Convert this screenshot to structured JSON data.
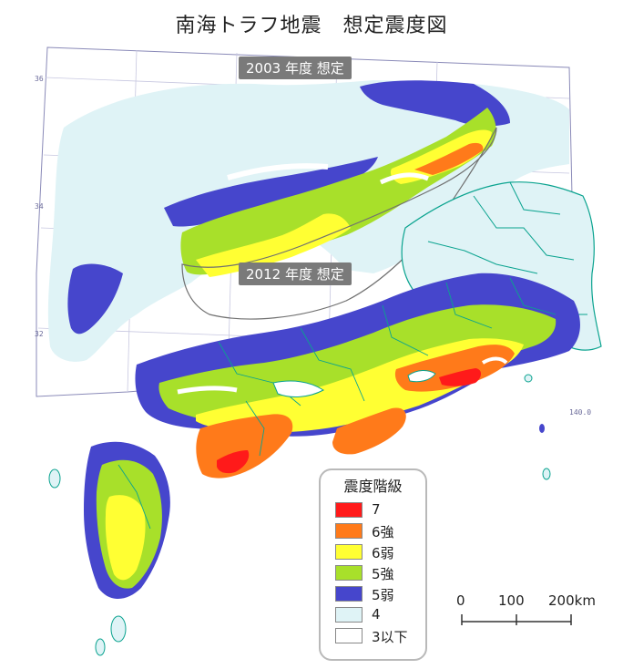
{
  "title": "南海トラフ地震　想定震度図",
  "labels": {
    "y2003": "2003 年度 想定",
    "y2012": "2012 年度 想定"
  },
  "grid_coords": {
    "lat_36": "36",
    "lat_34": "34",
    "lat_32": "32",
    "lon_140": "140.0"
  },
  "legend": {
    "title": "震度階級",
    "items": [
      {
        "label": "7",
        "color": "#ff1a1a"
      },
      {
        "label": "6強",
        "color": "#ff7a1a"
      },
      {
        "label": "6弱",
        "color": "#ffff33"
      },
      {
        "label": "5強",
        "color": "#a8e02a"
      },
      {
        "label": "5弱",
        "color": "#4646cc"
      },
      {
        "label": "4",
        "color": "#dff3f6"
      },
      {
        "label": "3以下",
        "color": "#ffffff"
      }
    ]
  },
  "scale_bar": {
    "ticks": [
      "0",
      "100",
      "200km"
    ]
  }
}
